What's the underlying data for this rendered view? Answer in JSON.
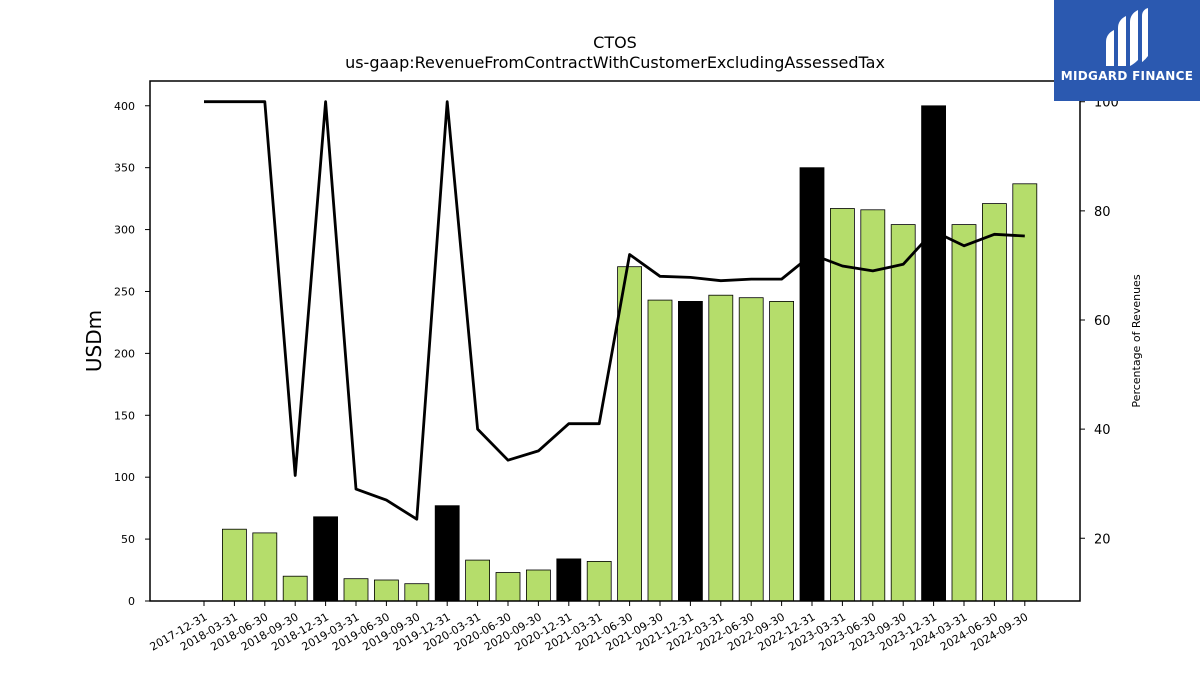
{
  "chart_data": {
    "type": "bar",
    "title": "CTOS",
    "subtitle": "us-gaap:RevenueFromContractWithCustomerExcludingAssessedTax",
    "ylabel": "USDm",
    "ylabel_right": "Percentage of Revenues",
    "ylim": [
      0,
      420
    ],
    "ylim_right": [
      8.5,
      103.8
    ],
    "yticks": [
      0,
      50,
      100,
      150,
      200,
      250,
      300,
      350,
      400
    ],
    "yticks_right": [
      20,
      40,
      60,
      80,
      100
    ],
    "categories": [
      "2017-12-31",
      "2018-03-31",
      "2018-06-30",
      "2018-09-30",
      "2018-12-31",
      "2019-03-31",
      "2019-06-30",
      "2019-09-30",
      "2019-12-31",
      "2020-03-31",
      "2020-06-30",
      "2020-09-30",
      "2020-12-31",
      "2021-03-31",
      "2021-06-30",
      "2021-09-30",
      "2021-12-31",
      "2022-03-31",
      "2022-06-30",
      "2022-09-30",
      "2022-12-31",
      "2023-03-31",
      "2023-06-30",
      "2023-09-30",
      "2023-12-31",
      "2024-03-31",
      "2024-06-30",
      "2024-09-30"
    ],
    "series": [
      {
        "type": "bar",
        "values": [
          null,
          58,
          55,
          20,
          68,
          18,
          17,
          14,
          77,
          33,
          23,
          25,
          34,
          32,
          270,
          243,
          242,
          247,
          245,
          242,
          350,
          317,
          316,
          304,
          400,
          304,
          321,
          337
        ],
        "bar_colors": [
          "#b5dd6b",
          "#b5dd6b",
          "#b5dd6b",
          "#b5dd6b",
          "#000000",
          "#b5dd6b",
          "#b5dd6b",
          "#b5dd6b",
          "#000000",
          "#b5dd6b",
          "#b5dd6b",
          "#b5dd6b",
          "#000000",
          "#b5dd6b",
          "#b5dd6b",
          "#b5dd6b",
          "#000000",
          "#b5dd6b",
          "#b5dd6b",
          "#b5dd6b",
          "#000000",
          "#b5dd6b",
          "#b5dd6b",
          "#b5dd6b",
          "#000000",
          "#b5dd6b",
          "#b5dd6b",
          "#b5dd6b"
        ]
      },
      {
        "type": "line",
        "axis": "right",
        "values": [
          100,
          100,
          100,
          31.5,
          100,
          29,
          27,
          23.5,
          100,
          40,
          34.3,
          36,
          41,
          41,
          72,
          68,
          67.8,
          67.2,
          67.5,
          67.5,
          72,
          69.9,
          69,
          70.2,
          76.3,
          73.6,
          75.7,
          75.4
        ],
        "color": "#000000"
      }
    ],
    "grid": false,
    "legend": "none"
  },
  "logo": {
    "text": "MIDGARD FINANCE",
    "background": "#2b59b0"
  },
  "colors": {
    "bar_default": "#b5dd6b",
    "bar_highlight": "#000000",
    "line": "#000000"
  }
}
